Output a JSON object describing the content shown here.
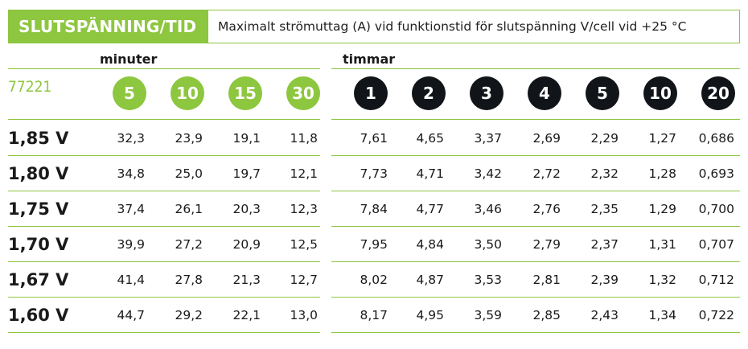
{
  "header": {
    "title": "SLUTSPÄNNING/TID",
    "description": "Maximalt strömuttag (A) vid funktionstid för slutspänning V/cell vid +25 °C"
  },
  "groups": {
    "minutes_label": "minuter",
    "hours_label": "timmar"
  },
  "model": "77221",
  "minute_columns": [
    "5",
    "10",
    "15",
    "30"
  ],
  "hour_columns": [
    "1",
    "2",
    "3",
    "4",
    "5",
    "10",
    "20"
  ],
  "rows": [
    {
      "voltage": "1,85 V",
      "minutes": [
        "32,3",
        "23,9",
        "19,1",
        "11,8"
      ],
      "hours": [
        "7,61",
        "4,65",
        "3,37",
        "2,69",
        "2,29",
        "1,27",
        "0,686"
      ]
    },
    {
      "voltage": "1,80 V",
      "minutes": [
        "34,8",
        "25,0",
        "19,7",
        "12,1"
      ],
      "hours": [
        "7,73",
        "4,71",
        "3,42",
        "2,72",
        "2,32",
        "1,28",
        "0,693"
      ]
    },
    {
      "voltage": "1,75 V",
      "minutes": [
        "37,4",
        "26,1",
        "20,3",
        "12,3"
      ],
      "hours": [
        "7,84",
        "4,77",
        "3,46",
        "2,76",
        "2,35",
        "1,29",
        "0,700"
      ]
    },
    {
      "voltage": "1,70 V",
      "minutes": [
        "39,9",
        "27,2",
        "20,9",
        "12,5"
      ],
      "hours": [
        "7,95",
        "4,84",
        "3,50",
        "2,79",
        "2,37",
        "1,31",
        "0,707"
      ]
    },
    {
      "voltage": "1,67 V",
      "minutes": [
        "41,4",
        "27,8",
        "21,3",
        "12,7"
      ],
      "hours": [
        "8,02",
        "4,87",
        "3,53",
        "2,81",
        "2,39",
        "1,32",
        "0,712"
      ]
    },
    {
      "voltage": "1,60 V",
      "minutes": [
        "44,7",
        "29,2",
        "22,1",
        "13,0"
      ],
      "hours": [
        "8,17",
        "4,95",
        "3,59",
        "2,85",
        "2,43",
        "1,34",
        "0,722"
      ]
    }
  ],
  "colors": {
    "accent_green": "#8dc63f",
    "dark_circle": "#111418"
  }
}
